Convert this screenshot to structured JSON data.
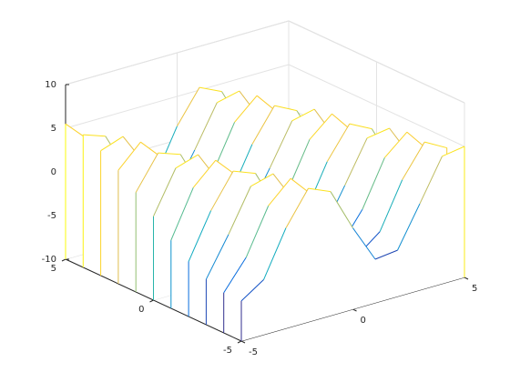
{
  "chart_data": {
    "type": "waterfall",
    "x": [
      -5,
      -4,
      -3,
      -2,
      -1,
      0,
      1,
      2,
      3,
      4,
      5
    ],
    "series": [
      {
        "y": -5,
        "values": [
          -5.4,
          -3.7,
          1.5,
          5.3,
          4.2,
          -0.7,
          -5.0,
          -4.7,
          -0.1,
          4.6,
          5.0
        ]
      },
      {
        "y": -4,
        "values": [
          -5.4,
          -2.1,
          3.1,
          5.5,
          2.8,
          -2.4,
          -5.5,
          -3.5,
          1.7,
          5.3,
          3.9
        ]
      },
      {
        "y": -3,
        "values": [
          -4.8,
          -0.4,
          4.4,
          5.1,
          1.1,
          -3.9,
          -5.4,
          -1.9,
          3.3,
          5.5,
          2.6
        ]
      },
      {
        "y": -2,
        "values": [
          -3.7,
          1.4,
          5.2,
          4.2,
          -0.7,
          -5.0,
          -4.7,
          -0.1,
          4.6,
          5.0,
          0.9
        ]
      },
      {
        "y": -1,
        "values": [
          -2.2,
          3.1,
          5.5,
          2.9,
          -2.4,
          -5.5,
          -3.5,
          1.7,
          5.3,
          4.0,
          -0.9
        ]
      },
      {
        "y": 0,
        "values": [
          -0.4,
          4.4,
          5.2,
          1.2,
          -3.9,
          -5.4,
          -1.9,
          3.3,
          5.5,
          2.6,
          -2.6
        ]
      },
      {
        "y": 1,
        "values": [
          1.4,
          5.2,
          4.3,
          -0.6,
          -4.9,
          -4.7,
          -0.2,
          4.5,
          5.1,
          0.9,
          -4.0
        ]
      },
      {
        "y": 2,
        "values": [
          3.0,
          5.5,
          2.9,
          -2.3,
          -5.5,
          -3.5,
          1.6,
          5.3,
          4.0,
          -0.9,
          -5.0
        ]
      },
      {
        "y": 3,
        "values": [
          4.3,
          5.2,
          1.3,
          -3.8,
          -5.4,
          -2.0,
          3.2,
          5.5,
          2.7,
          -2.6,
          -5.5
        ]
      },
      {
        "y": 4,
        "values": [
          5.2,
          4.3,
          -0.5,
          -4.9,
          -4.7,
          -0.2,
          4.5,
          5.1,
          1.0,
          -3.9,
          -5.3
        ]
      },
      {
        "y": 5,
        "values": [
          5.5,
          3.0,
          -2.3,
          -5.4,
          -3.6,
          1.6,
          5.3,
          4.1,
          -0.8,
          -5.0,
          -4.6
        ]
      }
    ],
    "xlim": [
      -5,
      5
    ],
    "ylim": [
      -5,
      5
    ],
    "zlim": [
      -10,
      10
    ],
    "xticks": [
      -5,
      0,
      5
    ],
    "yticks": [
      -5,
      0,
      5
    ],
    "zticks": [
      -10,
      -5,
      0,
      5,
      10
    ],
    "grid": true,
    "colormap": [
      "#352a87",
      "#0363e1",
      "#1485d4",
      "#06a7c6",
      "#38b99e",
      "#92bf73",
      "#d9ba56",
      "#fcce2e",
      "#f9fb0e"
    ]
  }
}
